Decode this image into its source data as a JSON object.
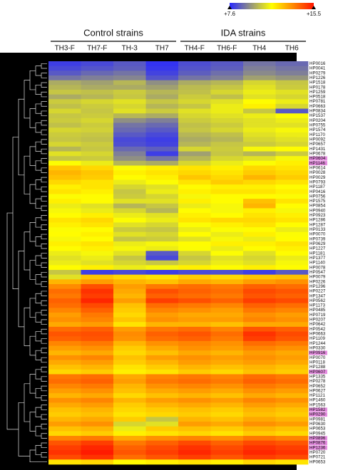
{
  "chart_data": {
    "type": "heatmap",
    "column_groups": [
      {
        "name": "Control strains",
        "columns": [
          "TH3-F",
          "TH7-F",
          "TH-3",
          "TH7"
        ]
      },
      {
        "name": "IDA strains",
        "columns": [
          "TH4-F",
          "TH6-F",
          "TH4",
          "TH6"
        ]
      }
    ],
    "rows": [
      "HP0016",
      "HP0041",
      "HP0279",
      "HP1226",
      "HP1518",
      "HP0178",
      "HP1259",
      "HP0518",
      "HP0781",
      "HP0663",
      "HP0834",
      "HP1537",
      "HP0204",
      "HP0755",
      "HP1574",
      "HP1170",
      "HP0092",
      "HP0657",
      "HP1431",
      "HP0678",
      "HP0604",
      "HP1146",
      "HP0614",
      "HP0028",
      "HP0029",
      "HP0793",
      "HP1187",
      "HP0416",
      "HP0756",
      "HP1575",
      "HP0854",
      "HP0940",
      "HP0923",
      "HP1286",
      "HP1287",
      "HP0133",
      "HP0070",
      "HP0739",
      "HP0629",
      "HP1227",
      "HP1181",
      "HP1377",
      "HP1140",
      "HP0078",
      "HP0547",
      "HP0079",
      "HP0226",
      "HP1296",
      "HP0227",
      "HP1347",
      "HP0562",
      "HP1173",
      "HP0485",
      "HP0719",
      "HP0207",
      "HP0642",
      "HP0542",
      "HP0663",
      "HP1109",
      "HP1244",
      "HP0330",
      "HP0916",
      "HP0070",
      "HP0118",
      "HP1288",
      "HP0607",
      "HP1335",
      "HP0278",
      "HP0652",
      "HP0627",
      "HP1121",
      "HP1460",
      "HP1563",
      "HP1582",
      "HP0290",
      "HP0981",
      "HP0630",
      "HP0653",
      "HP0945",
      "HP0896",
      "HP0876",
      "HP1236",
      "HP0720",
      "HP0721",
      "HP0653"
    ],
    "highlighted": [
      false,
      false,
      false,
      false,
      false,
      false,
      false,
      false,
      false,
      false,
      false,
      false,
      false,
      false,
      false,
      false,
      false,
      false,
      false,
      false,
      true,
      true,
      false,
      false,
      false,
      false,
      false,
      false,
      false,
      false,
      false,
      false,
      false,
      false,
      false,
      false,
      false,
      false,
      false,
      false,
      false,
      false,
      false,
      false,
      false,
      false,
      false,
      false,
      false,
      false,
      false,
      false,
      false,
      false,
      false,
      false,
      false,
      false,
      false,
      false,
      false,
      true,
      false,
      false,
      false,
      true,
      false,
      false,
      false,
      false,
      false,
      false,
      false,
      true,
      true,
      false,
      false,
      false,
      false,
      true,
      true,
      true,
      false,
      false,
      false
    ],
    "values": [
      [
        8.0,
        8.2,
        8.5,
        7.8,
        8.3,
        8.5,
        9.0,
        8.8
      ],
      [
        8.2,
        8.4,
        8.6,
        7.9,
        8.4,
        8.6,
        9.2,
        9.0
      ],
      [
        8.5,
        8.8,
        9.0,
        8.1,
        8.6,
        8.9,
        9.4,
        9.2
      ],
      [
        9.0,
        9.2,
        9.3,
        8.4,
        9.0,
        9.2,
        9.8,
        9.6
      ],
      [
        10.0,
        9.8,
        10.2,
        9.5,
        10.0,
        10.2,
        10.8,
        10.5
      ],
      [
        10.2,
        10.0,
        10.0,
        9.8,
        10.3,
        10.5,
        11.0,
        10.6
      ],
      [
        10.5,
        10.4,
        10.6,
        10.2,
        10.4,
        10.8,
        11.2,
        11.0
      ],
      [
        10.0,
        10.2,
        10.5,
        10.0,
        10.6,
        10.4,
        11.0,
        10.8
      ],
      [
        10.6,
        10.8,
        11.0,
        10.5,
        10.8,
        11.0,
        11.6,
        11.2
      ],
      [
        10.4,
        10.6,
        10.8,
        10.2,
        10.5,
        11.2,
        11.8,
        10.8
      ],
      [
        10.8,
        10.5,
        11.0,
        10.6,
        11.0,
        11.2,
        10.5,
        8.5
      ],
      [
        10.5,
        10.6,
        10.2,
        10.0,
        10.8,
        11.0,
        11.2,
        11.5
      ],
      [
        10.6,
        10.8,
        9.5,
        9.2,
        10.6,
        10.8,
        11.0,
        11.2
      ],
      [
        10.4,
        10.6,
        9.0,
        8.8,
        10.4,
        10.6,
        11.0,
        11.0
      ],
      [
        10.8,
        10.7,
        8.8,
        8.5,
        10.5,
        10.8,
        11.2,
        11.4
      ],
      [
        10.6,
        10.5,
        8.5,
        8.2,
        10.2,
        10.4,
        11.0,
        11.2
      ],
      [
        10.5,
        10.4,
        8.2,
        8.0,
        10.0,
        10.2,
        10.8,
        11.0
      ],
      [
        10.8,
        10.6,
        8.3,
        8.1,
        10.2,
        10.5,
        10.6,
        10.8
      ],
      [
        10.2,
        10.5,
        8.8,
        8.6,
        10.8,
        10.6,
        11.4,
        11.6
      ],
      [
        11.0,
        10.8,
        9.2,
        8.0,
        9.8,
        10.5,
        10.2,
        10.6
      ],
      [
        10.5,
        10.6,
        9.5,
        9.0,
        10.2,
        10.8,
        11.0,
        11.4
      ],
      [
        11.5,
        11.2,
        10.2,
        10.0,
        10.8,
        11.2,
        11.5,
        11.8
      ],
      [
        12.5,
        12.2,
        11.5,
        11.8,
        12.0,
        11.8,
        12.2,
        12.0
      ],
      [
        12.8,
        12.5,
        11.8,
        12.0,
        12.2,
        12.0,
        12.4,
        12.2
      ],
      [
        12.6,
        12.4,
        11.6,
        11.8,
        12.5,
        12.2,
        12.8,
        12.4
      ],
      [
        12.2,
        12.0,
        11.2,
        11.5,
        12.0,
        12.4,
        12.2,
        12.0
      ],
      [
        11.8,
        12.0,
        10.8,
        11.0,
        11.6,
        11.8,
        11.8,
        11.6
      ],
      [
        12.0,
        11.8,
        10.5,
        11.2,
        11.8,
        12.0,
        12.0,
        11.8
      ],
      [
        11.5,
        11.6,
        10.6,
        10.8,
        11.4,
        11.6,
        11.6,
        11.5
      ],
      [
        11.8,
        11.6,
        11.0,
        11.0,
        11.8,
        11.6,
        12.6,
        12.0
      ],
      [
        11.2,
        11.0,
        10.2,
        10.5,
        11.2,
        11.4,
        12.8,
        11.6
      ],
      [
        11.4,
        11.2,
        10.8,
        10.2,
        11.6,
        11.4,
        11.8,
        11.4
      ],
      [
        11.6,
        11.8,
        11.2,
        11.0,
        11.8,
        11.6,
        12.0,
        11.8
      ],
      [
        12.0,
        12.2,
        11.5,
        11.2,
        12.0,
        12.2,
        12.2,
        12.0
      ],
      [
        11.8,
        12.0,
        11.0,
        10.8,
        11.5,
        11.8,
        12.0,
        11.6
      ],
      [
        11.5,
        11.6,
        10.6,
        10.5,
        11.2,
        11.5,
        11.6,
        11.2
      ],
      [
        11.6,
        11.8,
        11.0,
        10.8,
        11.6,
        11.2,
        11.8,
        11.5
      ],
      [
        11.4,
        11.6,
        10.5,
        10.6,
        11.0,
        11.4,
        11.2,
        11.6
      ],
      [
        11.8,
        12.0,
        11.2,
        11.4,
        11.6,
        11.8,
        11.8,
        12.0
      ],
      [
        11.6,
        11.8,
        11.4,
        11.2,
        11.5,
        11.2,
        11.6,
        11.8
      ],
      [
        11.2,
        11.4,
        11.0,
        8.5,
        10.8,
        11.5,
        11.0,
        11.6
      ],
      [
        11.0,
        11.2,
        10.5,
        8.2,
        10.5,
        11.0,
        10.8,
        11.2
      ],
      [
        11.2,
        11.0,
        10.8,
        10.5,
        10.8,
        11.2,
        11.0,
        11.4
      ],
      [
        11.6,
        11.8,
        11.2,
        11.4,
        11.8,
        11.6,
        11.8,
        11.6
      ],
      [
        10.5,
        8.0,
        8.2,
        8.0,
        8.2,
        8.3,
        8.0,
        8.5
      ],
      [
        11.0,
        12.5,
        12.2,
        12.0,
        12.4,
        12.2,
        12.5,
        12.6
      ],
      [
        12.8,
        13.2,
        12.8,
        12.6,
        13.0,
        12.8,
        13.2,
        13.4
      ],
      [
        13.5,
        14.5,
        13.2,
        13.8,
        14.0,
        13.8,
        14.2,
        14.0
      ],
      [
        14.0,
        15.0,
        13.0,
        14.5,
        14.2,
        14.0,
        14.6,
        14.4
      ],
      [
        13.8,
        14.8,
        12.8,
        14.2,
        14.0,
        13.8,
        14.4,
        14.2
      ],
      [
        14.2,
        15.2,
        13.2,
        14.8,
        14.5,
        14.2,
        14.8,
        14.6
      ],
      [
        14.0,
        14.6,
        12.6,
        14.0,
        13.8,
        13.6,
        14.2,
        14.0
      ],
      [
        13.6,
        14.2,
        12.4,
        13.6,
        13.4,
        13.2,
        13.8,
        13.6
      ],
      [
        13.2,
        13.8,
        12.2,
        13.2,
        13.0,
        13.0,
        13.4,
        13.2
      ],
      [
        13.4,
        13.6,
        12.5,
        13.4,
        13.2,
        13.2,
        13.6,
        13.4
      ],
      [
        13.0,
        13.2,
        12.0,
        12.8,
        12.8,
        12.6,
        13.0,
        13.0
      ],
      [
        14.0,
        14.2,
        13.2,
        13.8,
        14.0,
        13.6,
        14.4,
        14.2
      ],
      [
        14.4,
        14.5,
        13.5,
        14.2,
        14.4,
        14.0,
        15.0,
        14.6
      ],
      [
        14.2,
        14.4,
        13.4,
        14.0,
        14.2,
        13.8,
        14.8,
        14.4
      ],
      [
        13.6,
        13.8,
        12.8,
        13.4,
        13.6,
        13.4,
        14.0,
        13.8
      ],
      [
        13.2,
        13.4,
        12.4,
        13.0,
        13.4,
        13.2,
        13.6,
        13.4
      ],
      [
        12.8,
        13.0,
        12.2,
        12.6,
        13.0,
        12.8,
        13.2,
        13.0
      ],
      [
        13.4,
        13.6,
        12.6,
        13.2,
        13.4,
        13.2,
        13.4,
        13.2
      ],
      [
        13.0,
        13.2,
        12.4,
        12.8,
        13.2,
        13.0,
        13.2,
        13.0
      ],
      [
        12.6,
        12.8,
        12.0,
        12.4,
        12.8,
        12.6,
        12.8,
        12.6
      ],
      [
        12.2,
        12.4,
        11.8,
        12.0,
        12.4,
        12.2,
        12.6,
        12.4
      ],
      [
        13.8,
        14.0,
        13.0,
        13.6,
        13.8,
        13.6,
        14.0,
        13.8
      ],
      [
        14.0,
        14.2,
        13.2,
        13.8,
        14.0,
        13.8,
        14.2,
        14.0
      ],
      [
        13.6,
        13.8,
        12.8,
        13.4,
        13.6,
        13.4,
        13.8,
        13.6
      ],
      [
        13.2,
        13.4,
        12.6,
        13.0,
        13.2,
        13.0,
        13.4,
        13.2
      ],
      [
        12.8,
        13.0,
        12.2,
        12.6,
        12.8,
        12.6,
        13.0,
        12.8
      ],
      [
        13.4,
        13.6,
        12.8,
        13.2,
        13.4,
        13.2,
        13.6,
        13.4
      ],
      [
        13.0,
        13.2,
        12.4,
        12.8,
        13.0,
        12.8,
        13.2,
        13.0
      ],
      [
        12.6,
        12.8,
        12.2,
        12.4,
        12.6,
        12.4,
        12.8,
        12.6
      ],
      [
        12.4,
        12.6,
        12.0,
        12.2,
        12.4,
        12.2,
        12.6,
        12.4
      ],
      [
        12.8,
        13.0,
        12.4,
        10.5,
        12.8,
        12.6,
        13.0,
        12.8
      ],
      [
        13.2,
        13.4,
        10.8,
        11.0,
        13.2,
        13.0,
        13.4,
        13.2
      ],
      [
        12.6,
        12.8,
        11.2,
        12.4,
        12.6,
        12.4,
        12.8,
        12.6
      ],
      [
        12.2,
        12.4,
        11.8,
        12.0,
        12.2,
        12.0,
        12.4,
        12.2
      ],
      [
        13.6,
        13.8,
        13.0,
        13.4,
        13.6,
        13.4,
        13.8,
        13.6
      ],
      [
        14.4,
        14.8,
        13.8,
        14.2,
        14.6,
        14.2,
        14.6,
        14.4
      ],
      [
        14.8,
        15.2,
        14.2,
        14.6,
        15.0,
        14.6,
        15.0,
        14.8
      ],
      [
        15.0,
        15.4,
        14.4,
        14.8,
        15.2,
        14.8,
        15.2,
        15.0
      ],
      [
        14.6,
        15.0,
        14.0,
        14.4,
        14.8,
        14.4,
        14.8,
        14.6
      ],
      [
        12.0,
        12.2,
        11.6,
        11.8,
        12.0,
        11.8,
        12.2,
        12.0
      ]
    ],
    "zlim": [
      7.6,
      15.5
    ],
    "colormap": [
      "#2828ff",
      "#ffff00",
      "#ff1400"
    ],
    "colorbar_ticks": [
      {
        "value": 7.6,
        "label": "+7.6"
      },
      {
        "value": 15.5,
        "label": "+15.5"
      }
    ]
  }
}
